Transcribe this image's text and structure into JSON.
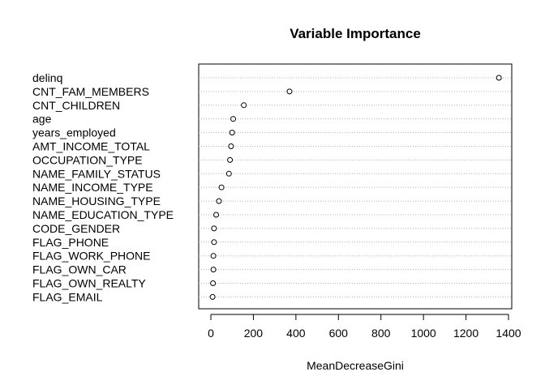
{
  "chart_data": {
    "type": "scatter",
    "title": "Variable Importance",
    "xlabel": "MeanDecreaseGini",
    "ylabel": "",
    "xlim": [
      0,
      1400
    ],
    "xticks": [
      0,
      200,
      400,
      600,
      800,
      1000,
      1200,
      1400
    ],
    "grid": "dotted horizontal guide lines",
    "variables": [
      "delinq",
      "CNT_FAM_MEMBERS",
      "CNT_CHILDREN",
      "age",
      "years_employed",
      "AMT_INCOME_TOTAL",
      "OCCUPATION_TYPE",
      "NAME_FAMILY_STATUS",
      "NAME_INCOME_TYPE",
      "NAME_HOUSING_TYPE",
      "NAME_EDUCATION_TYPE",
      "CODE_GENDER",
      "FLAG_PHONE",
      "FLAG_WORK_PHONE",
      "FLAG_OWN_CAR",
      "FLAG_OWN_REALTY",
      "FLAG_EMAIL"
    ],
    "values": [
      1355,
      370,
      155,
      105,
      100,
      95,
      90,
      85,
      50,
      38,
      25,
      15,
      15,
      12,
      12,
      10,
      8
    ],
    "marker": "open-circle",
    "colors": {
      "points": "#000000",
      "grid": "#b3b3b3",
      "frame": "#000000"
    }
  }
}
